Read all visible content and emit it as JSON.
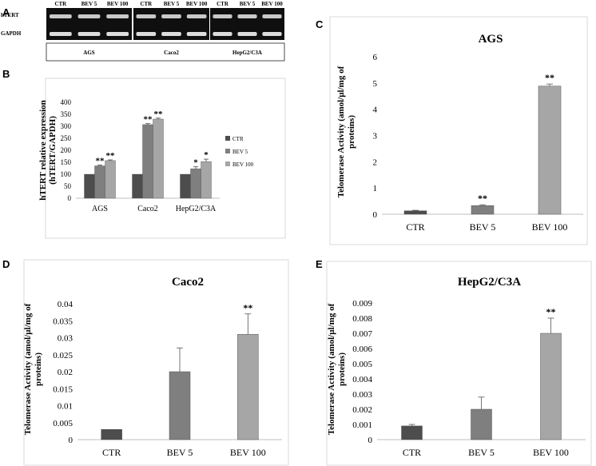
{
  "panel_letters": {
    "a": "A",
    "b": "B",
    "c": "C",
    "d": "D",
    "e": "E"
  },
  "colors": {
    "ctr": "#4d4d4d",
    "bev5": "#7f7f7f",
    "bev100": "#a6a6a6",
    "gel_bg": "#0f0f0f",
    "band": "#e9e9e9"
  },
  "gel": {
    "row_labels": [
      "hTERT",
      "GAPDH"
    ],
    "lane_labels": [
      "CTR",
      "BEV 5",
      "BEV 100"
    ],
    "cells": [
      "AGS",
      "Caco2",
      "HepG2/C3A"
    ]
  },
  "chart_data": [
    {
      "id": "B",
      "type": "bar",
      "categories": [
        "AGS",
        "Caco2",
        "HepG2/C3A"
      ],
      "series": [
        {
          "name": "CTR",
          "values": [
            100,
            100,
            100
          ],
          "errors": [
            0,
            0,
            0
          ],
          "sig": [
            "",
            "",
            ""
          ]
        },
        {
          "name": "BEV 5",
          "values": [
            135,
            307,
            123
          ],
          "errors": [
            3,
            4,
            8
          ],
          "sig": [
            "**",
            "**",
            "*"
          ]
        },
        {
          "name": "BEV 100",
          "values": [
            157,
            330,
            153
          ],
          "errors": [
            3,
            4,
            10
          ],
          "sig": [
            "**",
            "**",
            "*"
          ]
        }
      ],
      "ylabel": "hTERT relative expression (hTERT/GAPDH)",
      "ylabel_lines": [
        "hTERT relative expression",
        "(hTERT/GAPDH)"
      ],
      "ylim": [
        0,
        400
      ],
      "yticks": [
        0,
        50,
        100,
        150,
        200,
        250,
        300,
        350,
        400
      ],
      "legend": "right"
    },
    {
      "id": "C",
      "type": "bar",
      "title": "AGS",
      "categories": [
        "CTR",
        "BEV 5",
        "BEV 100"
      ],
      "values": [
        0.13,
        0.33,
        4.88
      ],
      "errors": [
        0.02,
        0.03,
        0.08
      ],
      "sig": [
        "",
        "**",
        "**"
      ],
      "ylabel": "Telomerase Activity (amol/µl/mg of proteins)",
      "ylabel_lines": [
        "Telomerase  Activity (amol/µl/mg of",
        "proteins)"
      ],
      "ylim": [
        0,
        6
      ],
      "yticks": [
        0,
        1,
        2,
        3,
        4,
        5,
        6
      ]
    },
    {
      "id": "D",
      "type": "bar",
      "title": "Caco2",
      "categories": [
        "CTR",
        "BEV 5",
        "BEV 100"
      ],
      "values": [
        0.003,
        0.02,
        0.031
      ],
      "errors": [
        0,
        0.007,
        0.006
      ],
      "sig": [
        "",
        "",
        "**"
      ],
      "ylabel": "Telomerase Activity (amol/µl/mg of proteins)",
      "ylabel_lines": [
        "Telomerase  Activity (amol/µl/mg of",
        "proteins)"
      ],
      "ylim": [
        0,
        0.04
      ],
      "yticks": [
        0,
        0.005,
        0.01,
        0.015,
        0.02,
        0.025,
        0.03,
        0.035,
        0.04
      ]
    },
    {
      "id": "E",
      "type": "bar",
      "title": "HepG2/C3A",
      "categories": [
        "CTR",
        "BEV 5",
        "BEV 100"
      ],
      "values": [
        0.0009,
        0.002,
        0.007
      ],
      "errors": [
        0.0001,
        0.0008,
        0.001
      ],
      "sig": [
        "",
        "",
        "**"
      ],
      "ylabel": "Telomerase Activity (amol/µl/mg of proteins)",
      "ylabel_lines": [
        "Telomerase  Activity (amol/µl/mg of",
        "proteins)"
      ],
      "ylim": [
        0,
        0.009
      ],
      "yticks": [
        0,
        0.001,
        0.002,
        0.003,
        0.004,
        0.005,
        0.006,
        0.007,
        0.008,
        0.009
      ]
    }
  ]
}
